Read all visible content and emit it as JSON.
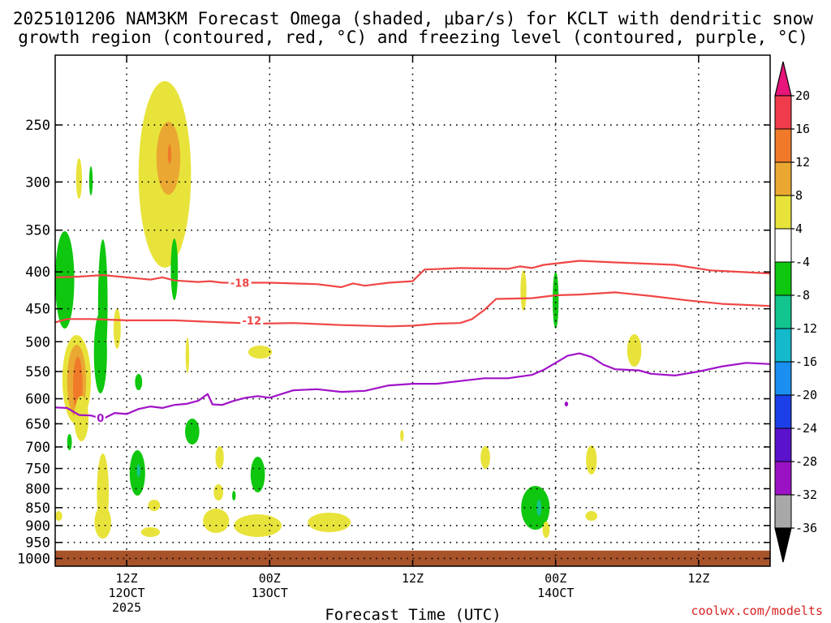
{
  "chart_data": {
    "type": "contour",
    "title_line1": "2025101206 NAM3KM Forecast Omega (shaded, μbar/s) for KCLT with dendritic snow",
    "title_line2": "growth region (contoured, red, °C) and freezing level (contoured, purple, °C)",
    "xlabel": "Forecast Time (UTC)",
    "credit": "coolwx.com/modelts",
    "y_ticks": [
      250,
      300,
      350,
      400,
      450,
      500,
      550,
      600,
      650,
      700,
      750,
      800,
      850,
      900,
      950,
      1000
    ],
    "y_range": [
      200,
      1025
    ],
    "x_range_hours": [
      0,
      60
    ],
    "x_ticks": [
      {
        "hour": 6,
        "label1": "12Z",
        "label2": "12OCT",
        "label3": "2025"
      },
      {
        "hour": 18,
        "label1": "00Z",
        "label2": "13OCT",
        "label3": ""
      },
      {
        "hour": 30,
        "label1": "12Z",
        "label2": "",
        "label3": ""
      },
      {
        "hour": 42,
        "label1": "00Z",
        "label2": "14OCT",
        "label3": ""
      },
      {
        "hour": 54,
        "label1": "12Z",
        "label2": "",
        "label3": ""
      }
    ],
    "colorbar": {
      "labels": [
        "20",
        "16",
        "12",
        "8",
        "4",
        "-4",
        "-8",
        "-12",
        "-16",
        "-20",
        "-24",
        "-28",
        "-32",
        "-36"
      ],
      "colors": [
        "#ef3b4b",
        "#f07a2a",
        "#eaa832",
        "#e8e33a",
        "#ffffff",
        "#0ec70e",
        "#12c48d",
        "#14b9cc",
        "#1a8ff0",
        "#1d3fe8",
        "#5a12cc",
        "#9a12c4",
        "#a8a8a8"
      ],
      "top_color": "#e8157a",
      "bottom_color": "#000000"
    },
    "contours": [
      {
        "name": "dgz-top",
        "value": -18,
        "label": "-18",
        "color": "#f04646",
        "points": [
          [
            0,
            407
          ],
          [
            2,
            406
          ],
          [
            4,
            404
          ],
          [
            6,
            407
          ],
          [
            8,
            410
          ],
          [
            9,
            407
          ],
          [
            10,
            411
          ],
          [
            12,
            413
          ],
          [
            13,
            412
          ],
          [
            14,
            414
          ],
          [
            18,
            414
          ],
          [
            22,
            416
          ],
          [
            24,
            420
          ],
          [
            25,
            415
          ],
          [
            26,
            418
          ],
          [
            28,
            414
          ],
          [
            30,
            412
          ],
          [
            31,
            397
          ],
          [
            34,
            395
          ],
          [
            38,
            396
          ],
          [
            39,
            393
          ],
          [
            40,
            395
          ],
          [
            41,
            391
          ],
          [
            44,
            386
          ],
          [
            47,
            388
          ],
          [
            52,
            391
          ],
          [
            55,
            398
          ],
          [
            60,
            402
          ]
        ],
        "label_at": [
          15.5,
          414
        ]
      },
      {
        "name": "dgz-bottom",
        "value": -12,
        "label": "-12",
        "color": "#f04646",
        "points": [
          [
            0,
            470
          ],
          [
            1,
            465
          ],
          [
            3,
            465
          ],
          [
            6,
            467
          ],
          [
            10,
            467
          ],
          [
            14,
            470
          ],
          [
            17,
            472
          ],
          [
            20,
            471
          ],
          [
            24,
            474
          ],
          [
            28,
            476
          ],
          [
            30,
            475
          ],
          [
            32,
            472
          ],
          [
            34,
            471
          ],
          [
            35,
            465
          ],
          [
            36,
            452
          ],
          [
            37,
            436
          ],
          [
            40,
            435
          ],
          [
            42,
            431
          ],
          [
            44,
            430
          ],
          [
            47,
            427
          ],
          [
            50,
            432
          ],
          [
            53,
            438
          ],
          [
            56,
            443
          ],
          [
            60,
            446
          ]
        ],
        "label_at": [
          16.5,
          467
        ]
      },
      {
        "name": "freezing-level",
        "value": 0,
        "label": "0",
        "color": "#a012c8",
        "points": [
          [
            0,
            617
          ],
          [
            1,
            618
          ],
          [
            2,
            632
          ],
          [
            3,
            633
          ],
          [
            4,
            640
          ],
          [
            5,
            628
          ],
          [
            6,
            630
          ],
          [
            7,
            620
          ],
          [
            8,
            615
          ],
          [
            9,
            618
          ],
          [
            10,
            612
          ],
          [
            11,
            610
          ],
          [
            12,
            604
          ],
          [
            12.8,
            591
          ],
          [
            13.2,
            611
          ],
          [
            14,
            612
          ],
          [
            15,
            604
          ],
          [
            16,
            598
          ],
          [
            17,
            595
          ],
          [
            18,
            598
          ],
          [
            19,
            591
          ],
          [
            20,
            584
          ],
          [
            22,
            582
          ],
          [
            24,
            587
          ],
          [
            26,
            585
          ],
          [
            28,
            575
          ],
          [
            30,
            572
          ],
          [
            32,
            572
          ],
          [
            34,
            567
          ],
          [
            36,
            562
          ],
          [
            38,
            562
          ],
          [
            40,
            556
          ],
          [
            41,
            547
          ],
          [
            42,
            535
          ],
          [
            43,
            523
          ],
          [
            44,
            519
          ],
          [
            45,
            525
          ],
          [
            46,
            538
          ],
          [
            47,
            546
          ],
          [
            49,
            548
          ],
          [
            50,
            554
          ],
          [
            52,
            557
          ],
          [
            54,
            550
          ],
          [
            56,
            541
          ],
          [
            58,
            535
          ],
          [
            60,
            537
          ]
        ],
        "label_at": [
          3.8,
          638
        ]
      }
    ],
    "omega_shading": [
      {
        "color": "#e8e33a",
        "cx": 2.0,
        "py": 220,
        "rx": 0.25,
        "ry": 25
      },
      {
        "color": "#0ec70e",
        "cx": 3.0,
        "py": 223,
        "rx": 0.15,
        "ry": 18
      },
      {
        "color": "#e8e33a",
        "cx": 9.2,
        "py": 215,
        "rx": 2.2,
        "ry": 115
      },
      {
        "color": "#eaa832",
        "cx": 9.5,
        "py": 195,
        "rx": 1.0,
        "ry": 45
      },
      {
        "color": "#f07a2a",
        "cx": 9.6,
        "py": 190,
        "rx": 0.15,
        "ry": 12
      },
      {
        "color": "#0ec70e",
        "cx": 0.8,
        "py": 345,
        "rx": 0.8,
        "ry": 60
      },
      {
        "color": "#0ec70e",
        "cx": 4.0,
        "py": 375,
        "rx": 0.4,
        "ry": 80
      },
      {
        "color": "#0ec70e",
        "cx": 3.8,
        "py": 435,
        "rx": 0.55,
        "ry": 50
      },
      {
        "color": "#0ec70e",
        "cx": 10.0,
        "py": 332,
        "rx": 0.3,
        "ry": 38
      },
      {
        "color": "#e8e33a",
        "cx": 1.8,
        "py": 468,
        "rx": 1.2,
        "ry": 55
      },
      {
        "color": "#eaa832",
        "cx": 1.8,
        "py": 470,
        "rx": 0.8,
        "ry": 45
      },
      {
        "color": "#f07a2a",
        "cx": 1.9,
        "py": 475,
        "rx": 0.4,
        "ry": 35
      },
      {
        "color": "#e8e33a",
        "cx": 2.2,
        "py": 516,
        "rx": 0.6,
        "ry": 28
      },
      {
        "color": "#e8e33a",
        "cx": 5.2,
        "py": 405,
        "rx": 0.3,
        "ry": 25
      },
      {
        "color": "#e8e33a",
        "cx": 11.1,
        "py": 438,
        "rx": 0.15,
        "ry": 22
      },
      {
        "color": "#e8e33a",
        "cx": 17.2,
        "py": 434,
        "rx": 1.0,
        "ry": 8
      },
      {
        "color": "#0ec70e",
        "cx": 7.0,
        "py": 471,
        "rx": 0.3,
        "ry": 10
      },
      {
        "color": "#0ec70e",
        "cx": 11.5,
        "py": 532,
        "rx": 0.6,
        "ry": 16
      },
      {
        "color": "#0ec70e",
        "cx": 1.2,
        "py": 545,
        "rx": 0.2,
        "ry": 10
      },
      {
        "color": "#e8e33a",
        "cx": 4.0,
        "py": 607,
        "rx": 0.5,
        "ry": 48
      },
      {
        "color": "#0ec70e",
        "cx": 6.9,
        "py": 583,
        "rx": 0.65,
        "ry": 28
      },
      {
        "color": "#12c48d",
        "cx": 7.0,
        "py": 580,
        "rx": 0.15,
        "ry": 8
      },
      {
        "color": "#e8e33a",
        "cx": 8.3,
        "py": 623,
        "rx": 0.5,
        "ry": 7
      },
      {
        "color": "#e8e33a",
        "cx": 8.0,
        "py": 656,
        "rx": 0.8,
        "ry": 6
      },
      {
        "color": "#e8e33a",
        "cx": 13.8,
        "py": 564,
        "rx": 0.35,
        "ry": 14
      },
      {
        "color": "#e8e33a",
        "cx": 13.7,
        "py": 607,
        "rx": 0.4,
        "ry": 10
      },
      {
        "color": "#0ec70e",
        "cx": 15.0,
        "py": 611,
        "rx": 0.15,
        "ry": 6
      },
      {
        "color": "#0ec70e",
        "cx": 17.0,
        "py": 585,
        "rx": 0.6,
        "ry": 22
      },
      {
        "color": "#e8e33a",
        "cx": 13.5,
        "py": 642,
        "rx": 1.1,
        "ry": 15
      },
      {
        "color": "#e8e33a",
        "cx": 17.0,
        "py": 648,
        "rx": 2.0,
        "ry": 14
      },
      {
        "color": "#e8e33a",
        "cx": 23.0,
        "py": 644,
        "rx": 1.8,
        "ry": 12
      },
      {
        "color": "#e8e33a",
        "cx": 0.3,
        "py": 636,
        "rx": 0.3,
        "ry": 6
      },
      {
        "color": "#e8e33a",
        "cx": 4.0,
        "py": 644,
        "rx": 0.7,
        "ry": 20
      },
      {
        "color": "#e8e33a",
        "cx": 36.1,
        "py": 564,
        "rx": 0.4,
        "ry": 14
      },
      {
        "color": "#e8e33a",
        "cx": 29.1,
        "py": 537,
        "rx": 0.15,
        "ry": 7
      },
      {
        "color": "#0ec70e",
        "cx": 40.3,
        "py": 626,
        "rx": 1.2,
        "ry": 27
      },
      {
        "color": "#12c48d",
        "cx": 40.6,
        "py": 626,
        "rx": 0.2,
        "ry": 10
      },
      {
        "color": "#e8e33a",
        "cx": 41.2,
        "py": 653,
        "rx": 0.3,
        "ry": 10
      },
      {
        "color": "#e8e33a",
        "cx": 39.3,
        "py": 358,
        "rx": 0.25,
        "ry": 25
      },
      {
        "color": "#0ec70e",
        "cx": 42.0,
        "py": 370,
        "rx": 0.25,
        "ry": 35
      },
      {
        "color": "#9a12c4",
        "cx": 42.9,
        "py": 498,
        "rx": 0.15,
        "ry": 3
      },
      {
        "color": "#e8e33a",
        "cx": 48.6,
        "py": 432,
        "rx": 0.6,
        "ry": 20
      },
      {
        "color": "#e8e33a",
        "cx": 45.0,
        "py": 567,
        "rx": 0.45,
        "ry": 18
      },
      {
        "color": "#e8e33a",
        "cx": 45.0,
        "py": 636,
        "rx": 0.5,
        "ry": 6
      }
    ],
    "ground": {
      "color": "#a8532a",
      "pressure_top": 975
    }
  }
}
